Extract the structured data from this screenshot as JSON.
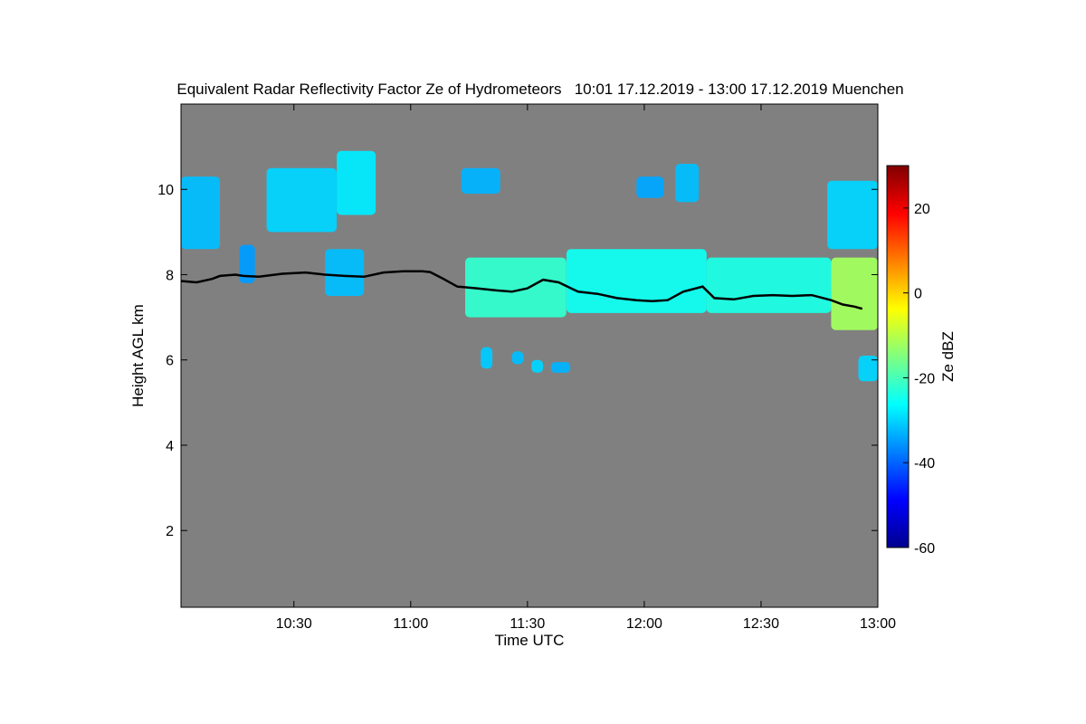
{
  "chart_data": {
    "type": "heatmap",
    "title": "Equivalent Radar Reflectivity Factor Ze of Hydrometeors   10:01 17.12.2019 - 13:00 17.12.2019 Muenchen",
    "xlabel": "Time UTC",
    "ylabel": "Height AGL km",
    "colorbar_label": "Ze dBZ",
    "xlim_minutes_utc": [
      601,
      780
    ],
    "ylim_km": [
      0.2,
      12.0
    ],
    "x_ticks": [
      {
        "minute": 630,
        "label": "10:30"
      },
      {
        "minute": 660,
        "label": "11:00"
      },
      {
        "minute": 690,
        "label": "11:30"
      },
      {
        "minute": 720,
        "label": "12:00"
      },
      {
        "minute": 750,
        "label": "12:30"
      },
      {
        "minute": 780,
        "label": "13:00"
      }
    ],
    "y_ticks": [
      {
        "value": 2,
        "label": "2"
      },
      {
        "value": 4,
        "label": "4"
      },
      {
        "value": 6,
        "label": "6"
      },
      {
        "value": 8,
        "label": "8"
      },
      {
        "value": 10,
        "label": "10"
      }
    ],
    "colorbar_range_dbz": [
      -60,
      30
    ],
    "colorbar_ticks": [
      {
        "value": -60,
        "label": "-60"
      },
      {
        "value": -40,
        "label": "-40"
      },
      {
        "value": -20,
        "label": "-20"
      },
      {
        "value": 0,
        "label": "0"
      },
      {
        "value": 20,
        "label": "20"
      }
    ],
    "background_color": "#808080",
    "echo_regions": [
      {
        "name": "upper-cloud-left",
        "t_start": 601,
        "t_end": 611,
        "h_bottom": 8.6,
        "h_top": 10.3,
        "ze": -32
      },
      {
        "name": "upper-cloud-1030",
        "t_start": 623,
        "t_end": 641,
        "h_bottom": 9.0,
        "h_top": 10.5,
        "ze": -30
      },
      {
        "name": "upper-cloud-1045",
        "t_start": 641,
        "t_end": 651,
        "h_bottom": 9.4,
        "h_top": 10.9,
        "ze": -28
      },
      {
        "name": "upper-cloud-1115",
        "t_start": 673,
        "t_end": 683,
        "h_bottom": 9.9,
        "h_top": 10.5,
        "ze": -33
      },
      {
        "name": "upper-cloud-1203",
        "t_start": 718,
        "t_end": 725,
        "h_bottom": 9.8,
        "h_top": 10.3,
        "ze": -34
      },
      {
        "name": "upper-cloud-1215",
        "t_start": 728,
        "t_end": 734,
        "h_bottom": 9.7,
        "h_top": 10.6,
        "ze": -32
      },
      {
        "name": "upper-cloud-right",
        "t_start": 767,
        "t_end": 780,
        "h_bottom": 8.6,
        "h_top": 10.2,
        "ze": -30
      },
      {
        "name": "virga-1030",
        "t_start": 616,
        "t_end": 620,
        "h_bottom": 7.8,
        "h_top": 8.7,
        "ze": -35
      },
      {
        "name": "virga-1045",
        "t_start": 638,
        "t_end": 648,
        "h_bottom": 7.5,
        "h_top": 8.6,
        "ze": -32
      },
      {
        "name": "main-layer-west",
        "t_start": 674,
        "t_end": 700,
        "h_bottom": 7.0,
        "h_top": 8.4,
        "ze": -22
      },
      {
        "name": "main-layer-center",
        "t_start": 700,
        "t_end": 736,
        "h_bottom": 7.1,
        "h_top": 8.6,
        "ze": -25
      },
      {
        "name": "main-layer-east",
        "t_start": 736,
        "t_end": 768,
        "h_bottom": 7.1,
        "h_top": 8.4,
        "ze": -24
      },
      {
        "name": "main-layer-edge",
        "t_start": 768,
        "t_end": 780,
        "h_bottom": 6.7,
        "h_top": 8.4,
        "ze": -12
      },
      {
        "name": "low-patch-1130",
        "t_start": 678,
        "t_end": 681,
        "h_bottom": 5.8,
        "h_top": 6.3,
        "ze": -31
      },
      {
        "name": "low-patch-1135",
        "t_start": 686,
        "t_end": 689,
        "h_bottom": 5.9,
        "h_top": 6.2,
        "ze": -32
      },
      {
        "name": "low-patch-1140",
        "t_start": 691,
        "t_end": 694,
        "h_bottom": 5.7,
        "h_top": 6.0,
        "ze": -30
      },
      {
        "name": "low-patch-1145",
        "t_start": 696,
        "t_end": 701,
        "h_bottom": 5.7,
        "h_top": 5.95,
        "ze": -33
      },
      {
        "name": "low-patch-1300",
        "t_start": 775,
        "t_end": 780,
        "h_bottom": 5.5,
        "h_top": 6.1,
        "ze": -30
      }
    ],
    "cloud_top_line": [
      {
        "t": 601,
        "h": 7.85
      },
      {
        "t": 605,
        "h": 7.82
      },
      {
        "t": 609,
        "h": 7.9
      },
      {
        "t": 611,
        "h": 7.97
      },
      {
        "t": 615,
        "h": 8.0
      },
      {
        "t": 617,
        "h": 7.97
      },
      {
        "t": 621,
        "h": 7.95
      },
      {
        "t": 627,
        "h": 8.02
      },
      {
        "t": 633,
        "h": 8.05
      },
      {
        "t": 638,
        "h": 8.0
      },
      {
        "t": 643,
        "h": 7.97
      },
      {
        "t": 648,
        "h": 7.95
      },
      {
        "t": 653,
        "h": 8.05
      },
      {
        "t": 658,
        "h": 8.08
      },
      {
        "t": 663,
        "h": 8.08
      },
      {
        "t": 665,
        "h": 8.06
      },
      {
        "t": 668,
        "h": 7.92
      },
      {
        "t": 672,
        "h": 7.72
      },
      {
        "t": 677,
        "h": 7.68
      },
      {
        "t": 682,
        "h": 7.63
      },
      {
        "t": 686,
        "h": 7.6
      },
      {
        "t": 690,
        "h": 7.68
      },
      {
        "t": 694,
        "h": 7.88
      },
      {
        "t": 698,
        "h": 7.82
      },
      {
        "t": 703,
        "h": 7.6
      },
      {
        "t": 708,
        "h": 7.55
      },
      {
        "t": 713,
        "h": 7.45
      },
      {
        "t": 718,
        "h": 7.4
      },
      {
        "t": 722,
        "h": 7.38
      },
      {
        "t": 726,
        "h": 7.4
      },
      {
        "t": 730,
        "h": 7.6
      },
      {
        "t": 735,
        "h": 7.72
      },
      {
        "t": 738,
        "h": 7.45
      },
      {
        "t": 743,
        "h": 7.42
      },
      {
        "t": 748,
        "h": 7.5
      },
      {
        "t": 753,
        "h": 7.52
      },
      {
        "t": 758,
        "h": 7.5
      },
      {
        "t": 763,
        "h": 7.52
      },
      {
        "t": 768,
        "h": 7.4
      },
      {
        "t": 771,
        "h": 7.3
      },
      {
        "t": 774,
        "h": 7.25
      },
      {
        "t": 776,
        "h": 7.2
      }
    ]
  }
}
